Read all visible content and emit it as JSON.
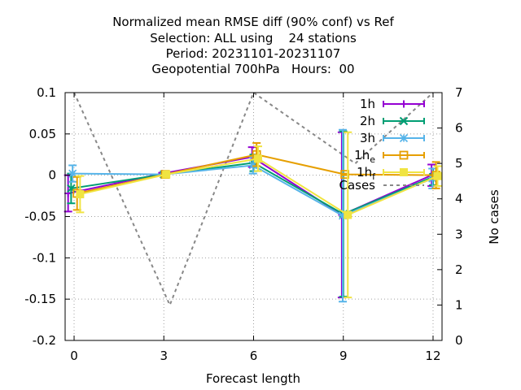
{
  "chart_data": {
    "type": "line",
    "title_lines": [
      "Normalized mean RMSE diff (90% conf) vs Ref",
      "Selection: ALL using    24 stations",
      "Period: 20231101-20231107",
      "Geopotential 700hPa   Hours:  00"
    ],
    "xlabel": "Forecast length",
    "ylabel": "",
    "y2label": "No cases",
    "xlim": [
      -0.3,
      12.3
    ],
    "ylim": [
      -0.2,
      0.1
    ],
    "y2lim": [
      0,
      7
    ],
    "xticks": [
      0,
      3,
      6,
      9,
      12
    ],
    "yticks": [
      -0.2,
      -0.15,
      -0.1,
      -0.05,
      0,
      0.05,
      0.1
    ],
    "ytick_labels": [
      "-0.2",
      "-0.15",
      "-0.1",
      "-0.05",
      "0",
      "0.05",
      "0.1"
    ],
    "y2ticks": [
      0,
      1,
      2,
      3,
      4,
      5,
      6,
      7
    ],
    "grid": true,
    "legend_position": "top-right",
    "series": [
      {
        "name": "1h",
        "sub": "",
        "color": "#9400d3",
        "marker": "plus",
        "x": [
          -0.2,
          2.95,
          5.95,
          8.95,
          11.95
        ],
        "y": [
          -0.022,
          0.002,
          0.022,
          -0.048,
          0.0
        ],
        "err": [
          0.022,
          0.001,
          0.012,
          0.1,
          0.013
        ]
      },
      {
        "name": "2h",
        "sub": "",
        "color": "#009e73",
        "marker": "x",
        "x": [
          -0.1,
          3.0,
          6.0,
          9.0,
          12.0
        ],
        "y": [
          -0.016,
          0.001,
          0.015,
          -0.047,
          -0.002
        ],
        "err": [
          0.018,
          0.001,
          0.01,
          0.1,
          0.01
        ]
      },
      {
        "name": "3h",
        "sub": "",
        "color": "#56b4e9",
        "marker": "star",
        "x": [
          -0.05,
          3.02,
          5.98,
          8.98,
          11.98
        ],
        "y": [
          0.002,
          0.001,
          0.012,
          -0.049,
          -0.004
        ],
        "err": [
          0.01,
          0.001,
          0.01,
          0.104,
          0.012
        ]
      },
      {
        "name": "1h",
        "sub": "e",
        "color": "#e69f00",
        "marker": "square-open",
        "x": [
          0.1,
          3.05,
          6.1,
          9.05,
          12.1
        ],
        "y": [
          -0.022,
          0.001,
          0.025,
          0.001,
          0.0
        ],
        "err": [
          0.02,
          0.001,
          0.014,
          0.001,
          0.016
        ]
      },
      {
        "name": "1h",
        "sub": "f",
        "color": "#f0e442",
        "marker": "square",
        "x": [
          0.2,
          3.08,
          6.15,
          9.15,
          12.15
        ],
        "y": [
          -0.023,
          0.001,
          0.02,
          -0.048,
          -0.001
        ],
        "err": [
          0.022,
          0.001,
          0.015,
          0.1,
          0.012
        ]
      }
    ],
    "cases": {
      "name": "Cases",
      "color": "#888888",
      "x": [
        0,
        3.2,
        6.0,
        9.4,
        12.0
      ],
      "y": [
        7,
        1,
        7,
        5,
        7
      ]
    }
  }
}
